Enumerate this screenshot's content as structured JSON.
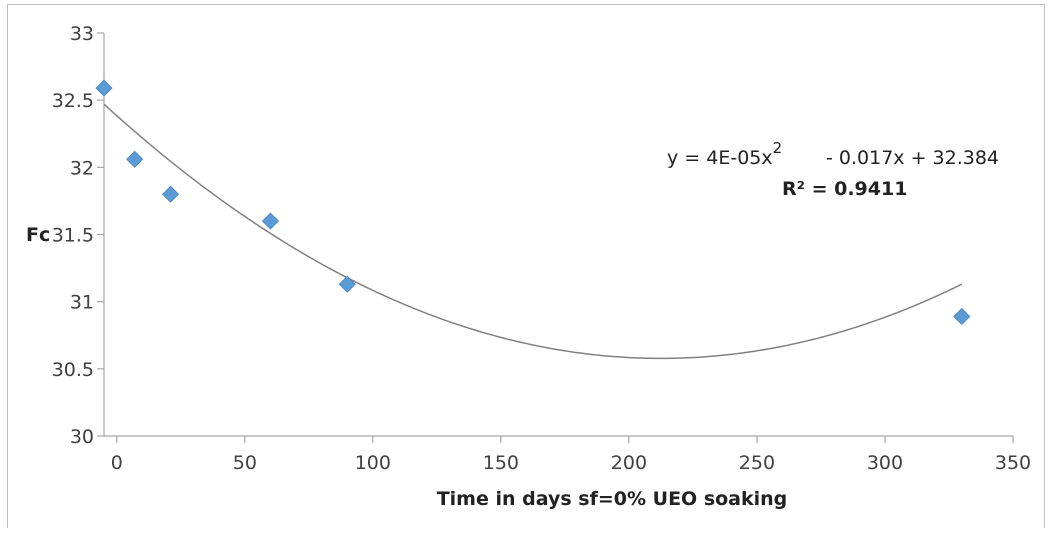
{
  "chart_data": {
    "type": "scatter",
    "title": "",
    "xlabel": "Time in days sf=0% UEO soaking",
    "ylabel": "Fc",
    "xlim": [
      -5,
      350
    ],
    "ylim": [
      30,
      33
    ],
    "xticks": [
      0,
      50,
      100,
      150,
      200,
      250,
      300,
      350
    ],
    "xtick_labels": [
      "0",
      "50",
      "100",
      "150",
      "200",
      "250",
      "300",
      "350"
    ],
    "yticks": [
      30,
      30.5,
      31,
      31.5,
      32,
      32.5,
      33
    ],
    "ytick_labels": [
      "30",
      "30.5",
      "31",
      "31.5",
      "32",
      "32.5",
      "33"
    ],
    "grid": false,
    "legend": "none",
    "series": [
      {
        "color": "#5b9bd5",
        "marker": "diamond",
        "x": [
          -5,
          7,
          21,
          60,
          90,
          330
        ],
        "y": [
          32.59,
          32.06,
          31.8,
          31.6,
          31.13,
          30.89
        ]
      }
    ],
    "trendline": {
      "kind": "polynomial",
      "color": "#808080",
      "coefficients": {
        "a": 4e-05,
        "b": -0.017,
        "c": 32.384
      },
      "equation_main": "y = 4E-05x",
      "equation_exp": "2",
      "equation_rest": "- 0.017x + 32.384",
      "r2_label": "R² = 0.9411"
    }
  }
}
